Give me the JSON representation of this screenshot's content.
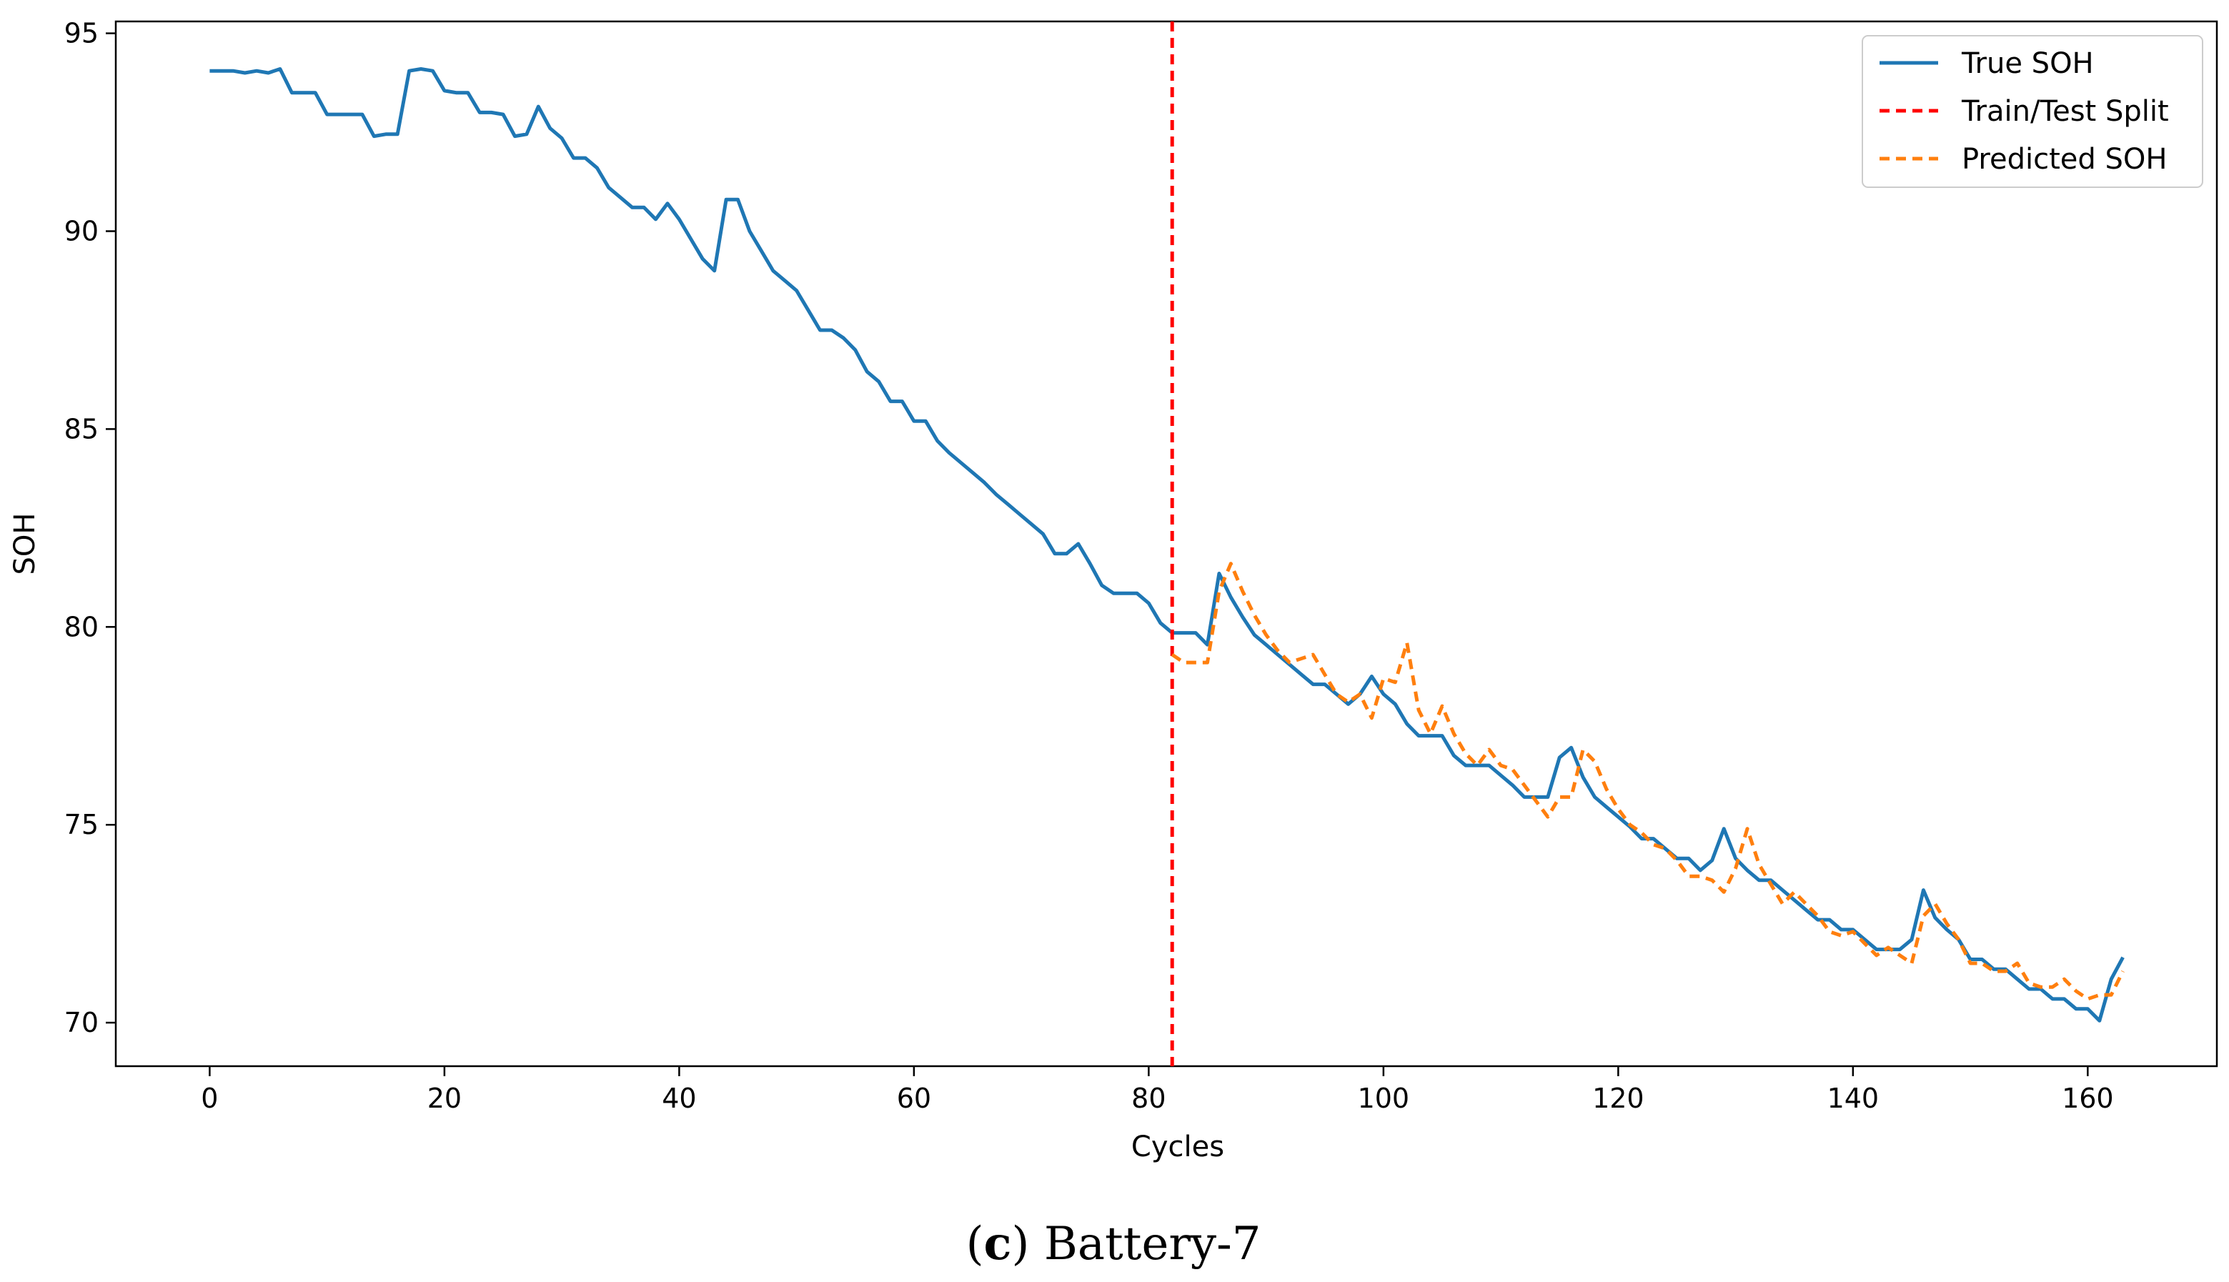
{
  "chart_data": {
    "type": "line",
    "xlabel": "Cycles",
    "ylabel": "SOH",
    "xlim": [
      -8,
      171
    ],
    "ylim": [
      68.9,
      95.3
    ],
    "xticks": [
      0,
      20,
      40,
      60,
      80,
      100,
      120,
      140,
      160
    ],
    "yticks": [
      70,
      75,
      80,
      85,
      90,
      95
    ],
    "grid": false,
    "legend_position": "top-right",
    "split_x": 82,
    "series": [
      {
        "name": "True SOH",
        "color": "#1f77b4",
        "style": "solid",
        "x_start": 0,
        "values": [
          94.05,
          94.05,
          94.05,
          94.0,
          94.05,
          94.0,
          94.1,
          93.5,
          93.5,
          93.5,
          92.95,
          92.95,
          92.95,
          92.95,
          92.4,
          92.45,
          92.45,
          94.05,
          94.1,
          94.05,
          93.55,
          93.5,
          93.5,
          93.0,
          93.0,
          92.95,
          92.4,
          92.45,
          93.15,
          92.6,
          92.35,
          91.85,
          91.85,
          91.6,
          91.1,
          90.85,
          90.6,
          90.6,
          90.3,
          90.7,
          90.3,
          89.8,
          89.3,
          89.0,
          90.8,
          90.8,
          90.0,
          89.5,
          89.0,
          88.75,
          88.5,
          88.0,
          87.5,
          87.5,
          87.3,
          87.0,
          86.45,
          86.2,
          85.7,
          85.7,
          85.2,
          85.2,
          84.7,
          84.4,
          84.15,
          83.9,
          83.65,
          83.35,
          83.1,
          82.85,
          82.6,
          82.35,
          81.85,
          81.85,
          82.1,
          81.6,
          81.05,
          80.85,
          80.85,
          80.85,
          80.6,
          80.1,
          79.85,
          79.85,
          79.85,
          79.55,
          81.35,
          80.75,
          80.25,
          79.8,
          79.55,
          79.3,
          79.05,
          78.8,
          78.55,
          78.55,
          78.3,
          78.05,
          78.3,
          78.75,
          78.3,
          78.05,
          77.55,
          77.25,
          77.25,
          77.25,
          76.75,
          76.5,
          76.5,
          76.5,
          76.25,
          76.0,
          75.7,
          75.7,
          75.7,
          76.7,
          76.95,
          76.2,
          75.7,
          75.45,
          75.2,
          74.95,
          74.65,
          74.65,
          74.4,
          74.15,
          74.15,
          73.85,
          74.1,
          74.9,
          74.15,
          73.85,
          73.6,
          73.6,
          73.35,
          73.1,
          72.85,
          72.6,
          72.6,
          72.35,
          72.35,
          72.1,
          71.85,
          71.85,
          71.85,
          72.1,
          73.35,
          72.65,
          72.35,
          72.1,
          71.6,
          71.6,
          71.35,
          71.35,
          71.1,
          70.85,
          70.85,
          70.6,
          70.6,
          70.35,
          70.35,
          70.05,
          71.1,
          71.65
        ]
      },
      {
        "name": "Train/Test Split",
        "color": "#ff0000",
        "style": "dashed-vertical",
        "x": 82
      },
      {
        "name": "Predicted SOH",
        "color": "#ff7f0e",
        "style": "dashed",
        "x_start": 82,
        "values": [
          79.3,
          79.1,
          79.1,
          79.1,
          80.9,
          81.6,
          80.9,
          80.3,
          79.8,
          79.4,
          79.1,
          79.2,
          79.3,
          78.8,
          78.3,
          78.1,
          78.3,
          77.7,
          78.7,
          78.6,
          79.6,
          77.9,
          77.3,
          78.0,
          77.3,
          76.8,
          76.5,
          76.9,
          76.5,
          76.4,
          76.0,
          75.6,
          75.2,
          75.7,
          75.7,
          76.9,
          76.6,
          75.9,
          75.4,
          75.0,
          74.8,
          74.5,
          74.4,
          74.1,
          73.7,
          73.7,
          73.6,
          73.3,
          73.9,
          74.9,
          74.0,
          73.5,
          73.0,
          73.3,
          73.0,
          72.7,
          72.3,
          72.2,
          72.3,
          72.0,
          71.7,
          71.9,
          71.7,
          71.5,
          72.7,
          73.0,
          72.5,
          72.1,
          71.5,
          71.5,
          71.3,
          71.3,
          71.5,
          71.0,
          70.9,
          70.9,
          71.1,
          70.8,
          70.6,
          70.7,
          70.7,
          71.3
        ]
      }
    ]
  },
  "legend": {
    "items": [
      {
        "label": "True SOH",
        "color": "#1f77b4",
        "dash": "none"
      },
      {
        "label": "Train/Test Split",
        "color": "#ff0000",
        "dash": "14,9"
      },
      {
        "label": "Predicted SOH",
        "color": "#ff7f0e",
        "dash": "14,9"
      }
    ]
  },
  "caption": {
    "letter": "c",
    "text": "Battery-7"
  }
}
